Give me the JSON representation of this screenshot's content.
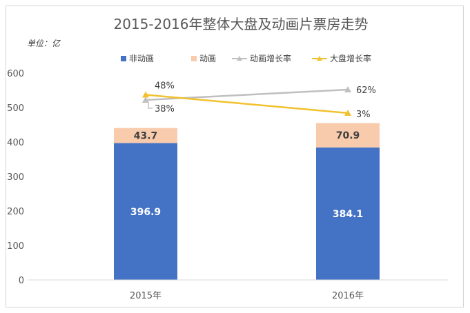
{
  "chart_data": {
    "type": "bar",
    "stacked": true,
    "title": "2015-2016年整体大盘及动画片票房走势",
    "unit_label": "单位：亿",
    "categories": [
      "2015年",
      "2016年"
    ],
    "ylim": [
      0,
      600
    ],
    "yticks": [
      "0",
      "100",
      "200",
      "300",
      "400",
      "500",
      "600"
    ],
    "grid": false,
    "legend_position": "top",
    "series": [
      {
        "name": "非动画",
        "type": "bar",
        "color": "#4472c4",
        "values": [
          396.9,
          384.1
        ],
        "labels": [
          "396.9",
          "384.1"
        ]
      },
      {
        "name": "动画",
        "type": "bar",
        "color": "#f8cbad",
        "values": [
          43.7,
          70.9
        ],
        "labels": [
          "43.7",
          "70.9"
        ]
      },
      {
        "name": "动画增长率",
        "type": "line",
        "color": "#bfbfbf",
        "marker": "triangle",
        "axis_values": [
          522,
          552
        ],
        "labels": [
          "38%",
          "62%"
        ]
      },
      {
        "name": "大盘增长率",
        "type": "line",
        "color": "#f2c12e",
        "marker": "triangle",
        "axis_values": [
          537,
          484
        ],
        "labels": [
          "48%",
          "3%"
        ]
      }
    ]
  }
}
